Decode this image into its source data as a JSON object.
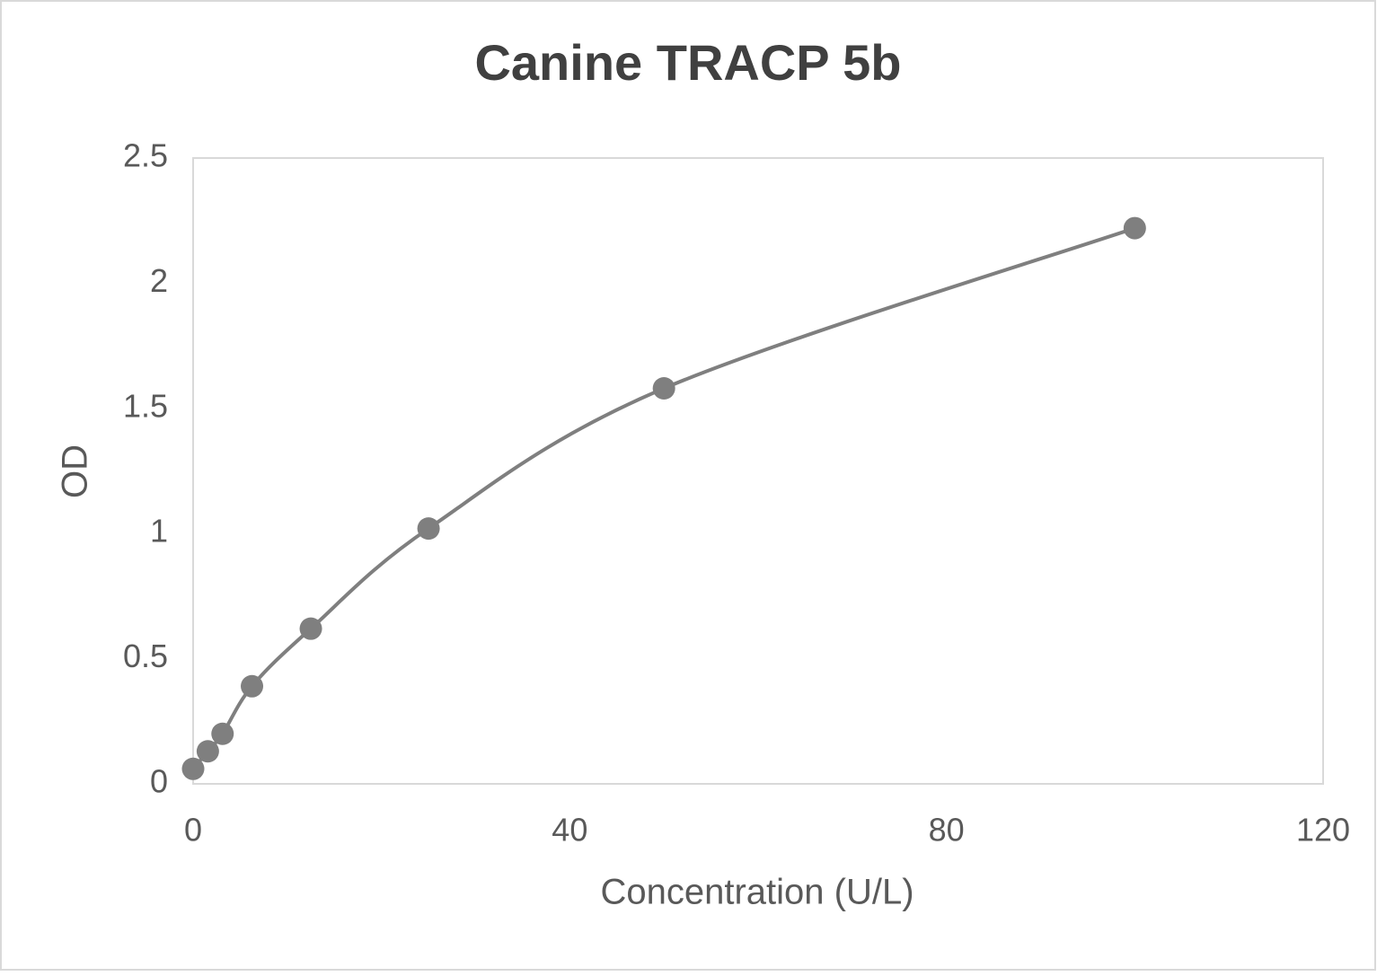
{
  "chart_data": {
    "type": "scatter",
    "title": "Canine TRACP 5b",
    "x_label": "Concentration (U/L)",
    "y_label": "OD",
    "series": [
      {
        "color": "#7f7f7f",
        "smooth": true,
        "x": [
          0,
          1.5625,
          3.125,
          6.25,
          12.5,
          25,
          50,
          100
        ],
        "values": [
          0.06,
          0.13,
          0.2,
          0.39,
          0.62,
          1.02,
          1.58,
          2.22
        ]
      }
    ],
    "xlim": [
      0,
      120
    ],
    "xticks": [
      0,
      40,
      80,
      120
    ],
    "ylim": [
      0,
      2.5
    ],
    "yticks": [
      0,
      0.5,
      1,
      1.5,
      2,
      2.5
    ],
    "grid": false
  }
}
